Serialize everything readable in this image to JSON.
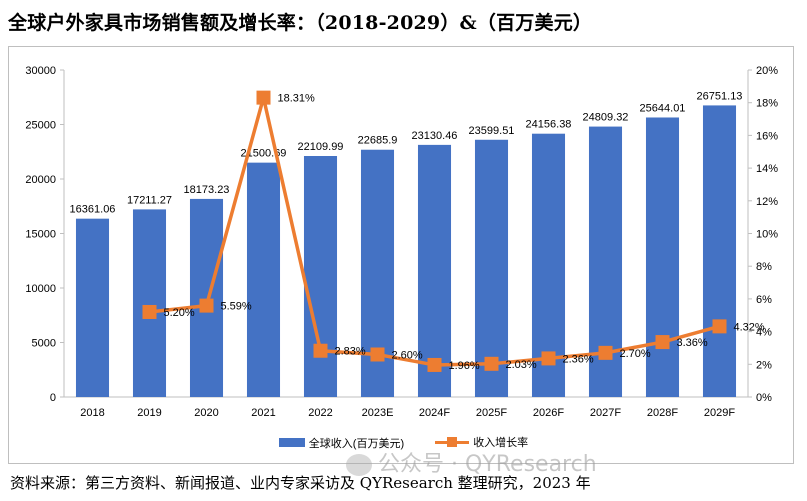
{
  "title": "全球户外家具市场销售额及增长率：（2018-2029）&（百万美元）",
  "source": "资料来源：第三方资料、新闻报道、业内专家采访及 QYResearch 整理研究，2023 年",
  "watermark": "公众号 · QYResearch",
  "watermark_icon": "wechat-icon",
  "colors": {
    "bar": "#4472c4",
    "line": "#ed7d31"
  },
  "chart_data": {
    "type": "bar",
    "categories": [
      "2018",
      "2019",
      "2020",
      "2021",
      "2022",
      "2023E",
      "2024F",
      "2025F",
      "2026F",
      "2027F",
      "2028F",
      "2029F"
    ],
    "series": [
      {
        "name": "全球收入(百万美元)",
        "type": "bar",
        "axis": "left",
        "values": [
          16361.06,
          17211.27,
          18173.23,
          21500.69,
          22109.99,
          22685.9,
          23130.46,
          23599.51,
          24156.38,
          24809.32,
          25644.01,
          26751.13
        ],
        "labels": [
          "16361.06",
          "17211.27",
          "18173.23",
          "21500.69",
          "22109.99",
          "22685.9",
          "23130.46",
          "23599.51",
          "24156.38",
          "24809.32",
          "25644.01",
          "26751.13"
        ]
      },
      {
        "name": "收入增长率",
        "type": "line",
        "axis": "right",
        "values": [
          null,
          5.2,
          5.59,
          18.31,
          2.83,
          2.6,
          1.96,
          2.03,
          2.36,
          2.7,
          3.36,
          4.32
        ],
        "labels": [
          "",
          "5.20%",
          "5.59%",
          "18.31%",
          "2.83%",
          "2.60%",
          "1.96%",
          "2.03%",
          "2.36%",
          "2.70%",
          "3.36%",
          "4.32%"
        ]
      }
    ],
    "y_left": {
      "min": 0,
      "max": 30000,
      "ticks": [
        "0",
        "5000",
        "10000",
        "15000",
        "20000",
        "25000",
        "30000"
      ]
    },
    "y_right": {
      "min": 0,
      "max": 20,
      "ticks": [
        "0%",
        "2%",
        "4%",
        "6%",
        "8%",
        "10%",
        "12%",
        "14%",
        "16%",
        "18%",
        "20%"
      ]
    },
    "grid": false,
    "legend_position": "bottom"
  }
}
